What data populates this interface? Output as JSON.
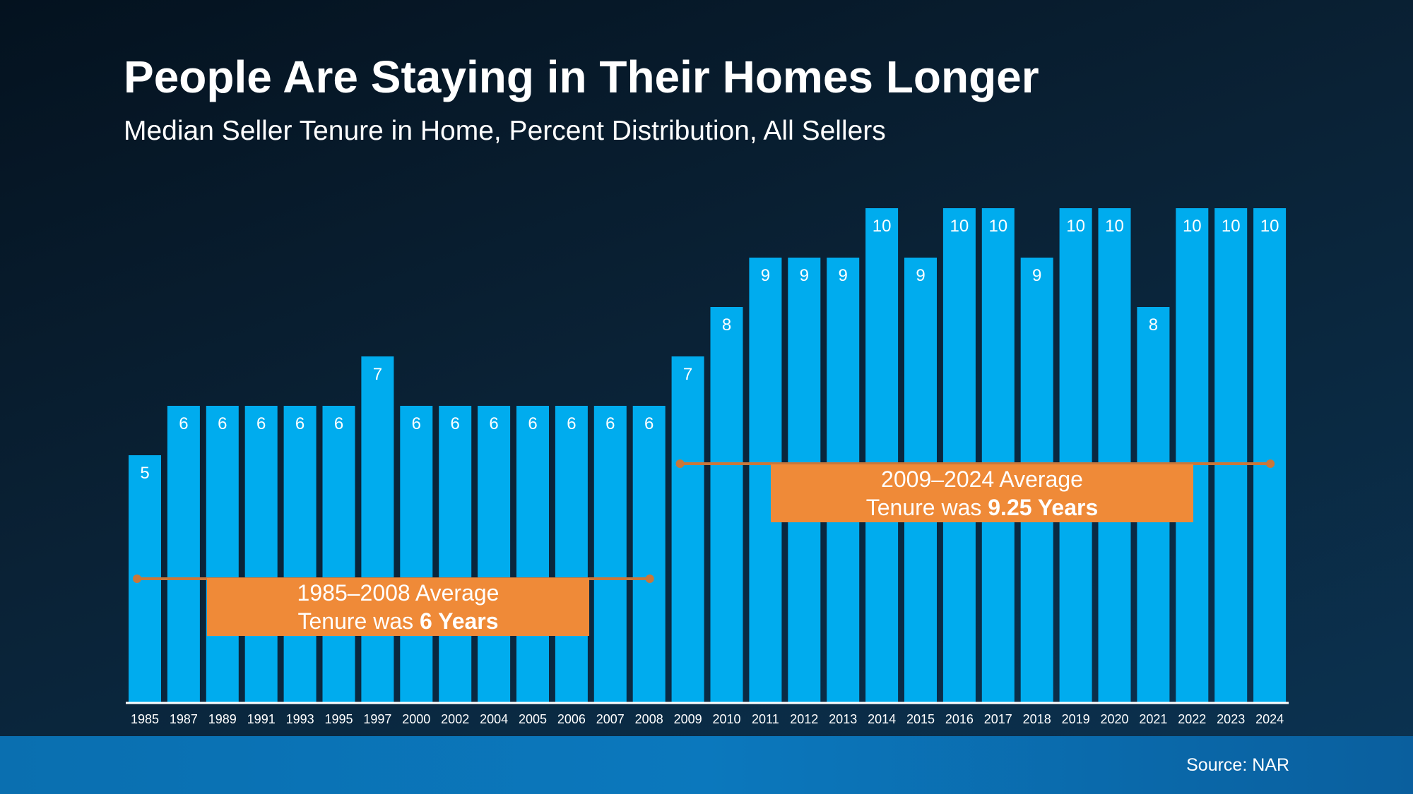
{
  "header": {
    "title": "People Are Staying in Their Homes Longer",
    "subtitle": "Median Seller Tenure in Home, Percent Distribution, All Sellers"
  },
  "footer": {
    "source": "Source: NAR"
  },
  "colors": {
    "bar": "#00acee",
    "callout": "#ef8a38",
    "average_line": "#c9773a",
    "axis": "#ffffff"
  },
  "chart_data": {
    "type": "bar",
    "categories": [
      "1985",
      "1987",
      "1989",
      "1991",
      "1993",
      "1995",
      "1997",
      "2000",
      "2002",
      "2004",
      "2005",
      "2006",
      "2007",
      "2008",
      "2009",
      "2010",
      "2011",
      "2012",
      "2013",
      "2014",
      "2015",
      "2016",
      "2017",
      "2018",
      "2019",
      "2020",
      "2021",
      "2022",
      "2023",
      "2024"
    ],
    "values": [
      5,
      6,
      6,
      6,
      6,
      6,
      7,
      6,
      6,
      6,
      6,
      6,
      6,
      6,
      7,
      8,
      9,
      9,
      9,
      10,
      9,
      10,
      10,
      9,
      10,
      10,
      8,
      10,
      10,
      10
    ],
    "ylim": [
      0,
      10
    ],
    "grid": false,
    "data_labels": true,
    "annotations": [
      {
        "id": "left",
        "from": "1985",
        "to": "2008",
        "value": 6,
        "line1": "1985–2008 Average",
        "line2_prefix": "Tenure was ",
        "line2_bold": "6 Years"
      },
      {
        "id": "right",
        "from": "2009",
        "to": "2024",
        "value": 9.25,
        "line1": "2009–2024 Average",
        "line2_prefix": "Tenure was ",
        "line2_bold": "9.25 Years"
      }
    ]
  }
}
